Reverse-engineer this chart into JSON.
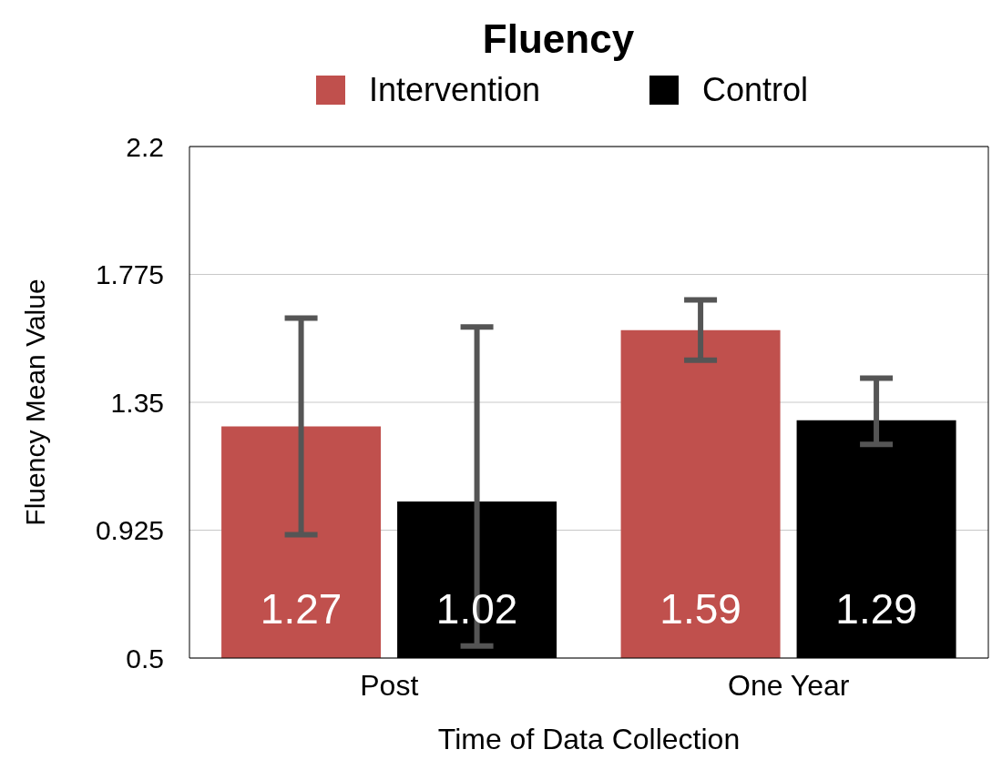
{
  "chart_data": {
    "type": "bar",
    "title": "Fluency",
    "xlabel": "Time of Data Collection",
    "ylabel": "Fluency Mean Value",
    "categories": [
      "Post",
      "One Year"
    ],
    "series": [
      {
        "name": "Intervention",
        "color": "#c0504d",
        "values": [
          1.27,
          1.59
        ],
        "errors": [
          [
            0.91,
            1.63
          ],
          [
            1.49,
            1.69
          ]
        ]
      },
      {
        "name": "Control",
        "color": "#000000",
        "values": [
          1.02,
          1.29
        ],
        "errors": [
          [
            0.54,
            1.6
          ],
          [
            1.21,
            1.43
          ]
        ]
      }
    ],
    "ylim": [
      0.5,
      2.2
    ],
    "yticks": [
      0.5,
      0.925,
      1.35,
      1.775,
      2.2
    ],
    "grid": "y",
    "legend": "top",
    "data_labels": true
  }
}
